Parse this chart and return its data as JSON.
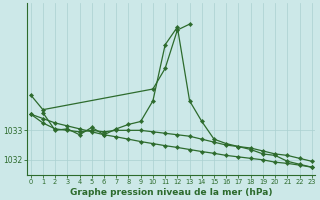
{
  "xlabel": "Graphe pression niveau de la mer (hPa)",
  "background_color": "#cce8e8",
  "grid_color": "#aad0d0",
  "line_color": "#2d6b2d",
  "hours": [
    0,
    1,
    2,
    3,
    4,
    5,
    6,
    7,
    8,
    9,
    10,
    11,
    12,
    13,
    14,
    15,
    16,
    17,
    18,
    19,
    20,
    21,
    22,
    23
  ],
  "line_upper": [
    1034.2,
    1033.7,
    null,
    null,
    null,
    null,
    null,
    null,
    null,
    null,
    1034.4,
    1035.1,
    1036.4,
    1036.6,
    null,
    null,
    null,
    null,
    null,
    null,
    null,
    null,
    null,
    null
  ],
  "line_spiky": [
    null,
    1033.6,
    1033.0,
    1033.05,
    1032.85,
    1033.1,
    1032.85,
    1033.05,
    1033.2,
    1033.3,
    1034.0,
    1035.9,
    1036.5,
    1034.0,
    1033.3,
    1032.7,
    1032.55,
    1032.45,
    1032.35,
    1032.2,
    1032.15,
    1031.95,
    1031.85,
    1031.75
  ],
  "line_mid": [
    1033.55,
    1033.25,
    1033.05,
    1033.0,
    1032.95,
    1033.0,
    1032.95,
    1033.0,
    1033.0,
    1033.0,
    1032.95,
    1032.9,
    1032.85,
    1032.8,
    1032.7,
    1032.6,
    1032.5,
    1032.45,
    1032.4,
    1032.3,
    1032.2,
    1032.15,
    1032.05,
    1031.95
  ],
  "line_diag": [
    1033.55,
    1033.4,
    1033.25,
    1033.15,
    1033.05,
    1032.95,
    1032.85,
    1032.78,
    1032.7,
    1032.62,
    1032.55,
    1032.48,
    1032.42,
    1032.35,
    1032.28,
    1032.22,
    1032.15,
    1032.1,
    1032.05,
    1032.0,
    1031.92,
    1031.88,
    1031.82,
    1031.75
  ],
  "ylim_min": 1031.5,
  "ylim_max": 1037.3,
  "yticks": [
    1032,
    1033
  ],
  "xticks": [
    0,
    1,
    2,
    3,
    4,
    5,
    6,
    7,
    8,
    9,
    10,
    11,
    12,
    13,
    14,
    15,
    16,
    17,
    18,
    19,
    20,
    21,
    22,
    23
  ]
}
